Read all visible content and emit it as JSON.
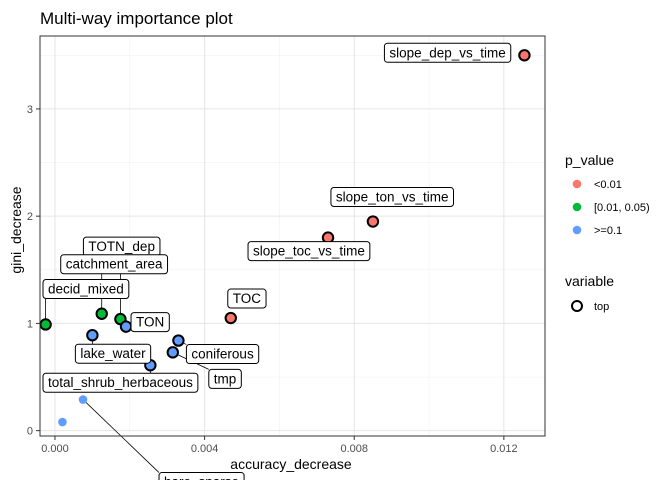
{
  "chart_data": {
    "type": "scatter",
    "title": "Multi-way importance plot",
    "xlabel": "accuracy_decrease",
    "ylabel": "gini_decrease",
    "xlim": [
      -0.0004,
      0.0131
    ],
    "ylim": [
      -0.05,
      3.68
    ],
    "xticks": [
      0.0,
      0.004,
      0.008,
      0.012
    ],
    "xtick_labels": [
      "0.000",
      "0.004",
      "0.008",
      "0.012"
    ],
    "yticks": [
      0,
      1,
      2,
      3
    ],
    "ytick_labels": [
      "0",
      "1",
      "2",
      "3"
    ],
    "grid": true,
    "legend_position": "right",
    "legends": [
      {
        "title": "p_value",
        "entries": [
          {
            "label": "<0.01",
            "color": "#F8766D"
          },
          {
            "label": "[0.01, 0.05)",
            "color": "#00BA38"
          },
          {
            "label": ">=0.1",
            "color": "#619CFF"
          }
        ]
      },
      {
        "title": "variable",
        "entries": [
          {
            "label": "top"
          }
        ]
      }
    ],
    "points": [
      {
        "label": "slope_dep_vs_time",
        "x": 0.01255,
        "y": 3.5,
        "p": "<0.01",
        "top": true
      },
      {
        "label": "slope_ton_vs_time",
        "x": 0.0085,
        "y": 1.95,
        "p": "<0.01",
        "top": true
      },
      {
        "label": "slope_toc_vs_time",
        "x": 0.0073,
        "y": 1.8,
        "p": "<0.01",
        "top": true
      },
      {
        "label": "TOC",
        "x": 0.0047,
        "y": 1.05,
        "p": "<0.01",
        "top": true
      },
      {
        "label": "TOTN_dep",
        "x": 0.00175,
        "y": 1.04,
        "p": "[0.01, 0.05)",
        "top": true
      },
      {
        "label": "catchment_area",
        "x": 0.00125,
        "y": 1.09,
        "p": "[0.01, 0.05)",
        "top": true
      },
      {
        "label": "decid_mixed",
        "x": -0.00025,
        "y": 0.99,
        "p": "[0.01, 0.05)",
        "top": true
      },
      {
        "label": "TON",
        "x": 0.0019,
        "y": 0.97,
        "p": ">=0.1",
        "top": true
      },
      {
        "label": "lake_water",
        "x": 0.001,
        "y": 0.89,
        "p": ">=0.1",
        "top": true
      },
      {
        "label": "coniferous",
        "x": 0.0033,
        "y": 0.84,
        "p": ">=0.1",
        "top": true
      },
      {
        "label": "tmp",
        "x": 0.00315,
        "y": 0.73,
        "p": ">=0.1",
        "top": true
      },
      {
        "label": "total_shrub_herbaceous",
        "x": 0.00255,
        "y": 0.61,
        "p": ">=0.1",
        "top": true
      },
      {
        "label": "bare_sparse",
        "x": 0.00075,
        "y": 0.29,
        "p": ">=0.1",
        "top": false
      },
      {
        "label": "",
        "x": 0.0002,
        "y": 0.08,
        "p": ">=0.1",
        "top": false
      }
    ]
  }
}
